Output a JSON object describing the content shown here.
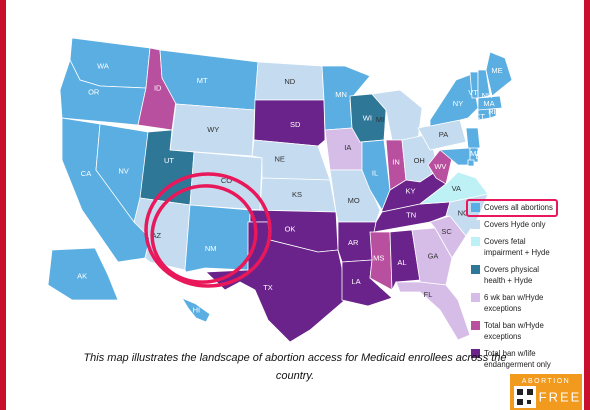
{
  "legend": [
    {
      "label": [
        "Covers all abortions"
      ],
      "color": "#5aaee2"
    },
    {
      "label": [
        "Covers Hyde only"
      ],
      "color": "#c4dbf0"
    },
    {
      "label": [
        "Covers fetal",
        "impairment + Hyde"
      ],
      "color": "#bdf1f6"
    },
    {
      "label": [
        "Covers physical",
        "health + Hyde"
      ],
      "color": "#2f7797"
    },
    {
      "label": [
        "6 wk ban w/Hyde",
        "exceptions"
      ],
      "color": "#d6bde8"
    },
    {
      "label": [
        "Total ban w/Hyde",
        "exceptions"
      ],
      "color": "#b9509f"
    },
    {
      "label": [
        "Total ban w/life",
        "endangerment only"
      ],
      "color": "#6a238a"
    }
  ],
  "states": [
    {
      "abbr": "WA",
      "category": 0
    },
    {
      "abbr": "OR",
      "category": 0
    },
    {
      "abbr": "CA",
      "category": 0
    },
    {
      "abbr": "NV",
      "category": 0
    },
    {
      "abbr": "ID",
      "category": 5
    },
    {
      "abbr": "MT",
      "category": 0
    },
    {
      "abbr": "WY",
      "category": 1
    },
    {
      "abbr": "UT",
      "category": 3
    },
    {
      "abbr": "AZ",
      "category": 1
    },
    {
      "abbr": "CO",
      "category": 1
    },
    {
      "abbr": "NM",
      "category": 0
    },
    {
      "abbr": "ND",
      "category": 1
    },
    {
      "abbr": "SD",
      "category": 6
    },
    {
      "abbr": "NE",
      "category": 1
    },
    {
      "abbr": "KS",
      "category": 1
    },
    {
      "abbr": "OK",
      "category": 6
    },
    {
      "abbr": "TX",
      "category": 6
    },
    {
      "abbr": "MN",
      "category": 0
    },
    {
      "abbr": "IA",
      "category": 4
    },
    {
      "abbr": "MO",
      "category": 1
    },
    {
      "abbr": "AR",
      "category": 6
    },
    {
      "abbr": "LA",
      "category": 6
    },
    {
      "abbr": "WI",
      "category": 3
    },
    {
      "abbr": "IL",
      "category": 0
    },
    {
      "abbr": "MI",
      "category": 1
    },
    {
      "abbr": "IN",
      "category": 5
    },
    {
      "abbr": "OH",
      "category": 1
    },
    {
      "abbr": "KY",
      "category": 6
    },
    {
      "abbr": "TN",
      "category": 6
    },
    {
      "abbr": "MS",
      "category": 5
    },
    {
      "abbr": "AL",
      "category": 6
    },
    {
      "abbr": "GA",
      "category": 4
    },
    {
      "abbr": "FL",
      "category": 4
    },
    {
      "abbr": "SC",
      "category": 4
    },
    {
      "abbr": "NC",
      "category": 1
    },
    {
      "abbr": "VA",
      "category": 2
    },
    {
      "abbr": "WV",
      "category": 5
    },
    {
      "abbr": "PA",
      "category": 1
    },
    {
      "abbr": "NY",
      "category": 0
    },
    {
      "abbr": "MD",
      "category": 0
    },
    {
      "abbr": "DE",
      "category": 0
    },
    {
      "abbr": "NJ",
      "category": 0
    },
    {
      "abbr": "CT",
      "category": 0
    },
    {
      "abbr": "RI",
      "category": 0
    },
    {
      "abbr": "MA",
      "category": 0
    },
    {
      "abbr": "VT",
      "category": 0
    },
    {
      "abbr": "NH",
      "category": 0
    },
    {
      "abbr": "ME",
      "category": 0
    },
    {
      "abbr": "DC",
      "category": 0
    },
    {
      "abbr": "AK",
      "category": 0
    },
    {
      "abbr": "HI",
      "category": 0
    }
  ],
  "caption": [
    "This map illustrates the landscape of abortion access for Medicaid enrollees across the",
    "country."
  ],
  "logo": [
    "ABORTION",
    "FREE"
  ]
}
